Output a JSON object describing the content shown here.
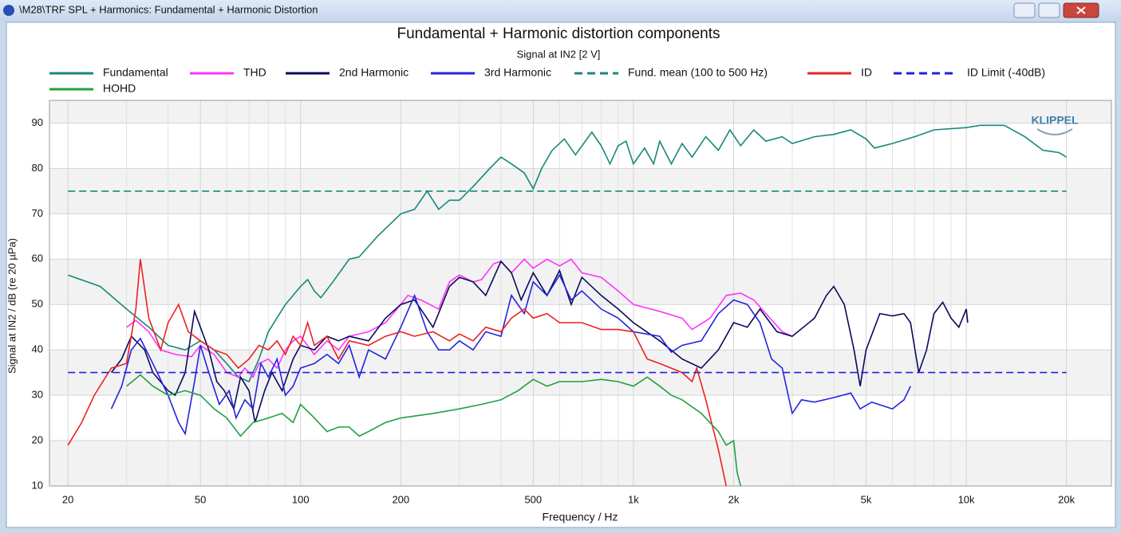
{
  "window_title": "\\M28\\TRF SPL + Harmonics: Fundamental + Harmonic Distortion",
  "logo": "KLIPPEL",
  "chart_data": {
    "type": "line",
    "title": "Fundamental + Harmonic distortion components",
    "subtitle": "Signal at IN2 [2 V]",
    "xlabel": "Frequency / Hz",
    "ylabel": "Signal at IN2 / dB (re 20 µPa)",
    "xscale": "log",
    "xlim": [
      17.6,
      27300
    ],
    "ylim": [
      10,
      95
    ],
    "xticks": [
      20,
      50,
      100,
      200,
      500,
      {
        "value": 1000,
        "label": "1k"
      },
      {
        "value": 2000,
        "label": "2k"
      },
      {
        "value": 5000,
        "label": "5k"
      },
      {
        "value": 10000,
        "label": "10k"
      },
      {
        "value": 20000,
        "label": "20k"
      }
    ],
    "xminor": [
      30,
      40,
      60,
      70,
      80,
      90,
      300,
      400,
      600,
      700,
      800,
      900,
      3000,
      4000,
      6000,
      7000,
      8000,
      9000
    ],
    "yticks": [
      10,
      20,
      30,
      40,
      50,
      60,
      70,
      80,
      90
    ],
    "grid": true,
    "series": [
      {
        "name": "Fundamental",
        "color": "#17877a",
        "dashed": false,
        "x": [
          20,
          25,
          30,
          35,
          40,
          45,
          50,
          55,
          60,
          65,
          70,
          75,
          80,
          90,
          100,
          105,
          110,
          115,
          125,
          140,
          150,
          170,
          200,
          220,
          240,
          260,
          280,
          300,
          330,
          370,
          400,
          430,
          470,
          500,
          530,
          570,
          620,
          670,
          750,
          800,
          850,
          900,
          950,
          1000,
          1080,
          1150,
          1200,
          1300,
          1400,
          1500,
          1650,
          1800,
          1950,
          2100,
          2300,
          2500,
          2800,
          3000,
          3500,
          4000,
          4500,
          5000,
          5300,
          6000,
          7000,
          8000,
          10000,
          11000,
          13000,
          15000,
          17000,
          19000,
          20000
        ],
        "values": [
          56.5,
          54,
          49,
          45,
          41,
          40,
          42,
          40,
          37,
          34,
          33,
          38,
          44,
          50,
          54,
          55.5,
          53,
          51.5,
          55,
          60,
          60.5,
          65,
          70,
          71,
          75,
          71,
          73,
          73,
          76,
          80,
          82.5,
          81,
          79,
          75.5,
          80,
          84,
          86.5,
          83,
          88,
          85,
          81,
          85,
          86,
          81,
          84.5,
          81,
          86,
          81,
          85.5,
          82.5,
          87,
          84,
          88.5,
          85,
          88.5,
          86,
          87,
          85.5,
          87,
          87.5,
          88.5,
          86.5,
          84.5,
          85.5,
          87,
          88.5,
          89,
          89.5,
          89.5,
          87,
          84,
          83.5,
          82.5
        ]
      },
      {
        "name": "THD",
        "color": "#ff33ff",
        "dashed": false,
        "x": [
          30,
          32,
          35,
          38,
          42,
          47,
          50,
          55,
          60,
          65,
          68,
          72,
          75,
          80,
          85,
          90,
          95,
          100,
          110,
          120,
          130,
          140,
          160,
          180,
          200,
          210,
          230,
          260,
          280,
          300,
          330,
          350,
          380,
          400,
          430,
          470,
          500,
          550,
          600,
          650,
          700,
          800,
          900,
          1000,
          1200,
          1400,
          1500,
          1700,
          1900,
          2100,
          2300,
          2500,
          2800,
          3000
        ],
        "values": [
          45,
          46.5,
          44,
          40,
          39,
          38.5,
          41,
          39,
          35,
          34,
          36,
          34,
          37,
          38,
          36,
          40,
          42,
          43,
          39,
          42,
          40,
          43,
          44,
          46,
          50,
          52,
          51,
          49,
          55,
          56.5,
          55,
          55.5,
          59,
          59.5,
          57,
          60,
          58,
          60,
          58.5,
          60,
          57,
          56,
          53,
          50,
          48.5,
          47,
          44.5,
          47,
          52,
          52.5,
          51,
          48,
          44,
          43
        ]
      },
      {
        "name": "2nd Harmonic",
        "color": "#0a0a5c",
        "dashed": false,
        "x": [
          27,
          29,
          31,
          34,
          36,
          40,
          42,
          45,
          48,
          50,
          53,
          56,
          59,
          63,
          66,
          70,
          73,
          78,
          82,
          88,
          95,
          100,
          110,
          120,
          130,
          140,
          160,
          180,
          200,
          220,
          250,
          280,
          300,
          330,
          360,
          400,
          430,
          460,
          500,
          550,
          600,
          650,
          700,
          800,
          900,
          1000,
          1200,
          1400,
          1600,
          1800,
          2000,
          2200,
          2400,
          2700,
          3000,
          3500,
          3800,
          4000,
          4300,
          4600,
          4800,
          5000,
          5500,
          6000,
          6500,
          6800,
          7200,
          7600,
          8000,
          8500,
          9000,
          9500,
          10000,
          10100
        ],
        "values": [
          35,
          38,
          43,
          40,
          35,
          31,
          30,
          35,
          48.5,
          45,
          40,
          33,
          31,
          27,
          34,
          31,
          24,
          31,
          35,
          31,
          38,
          41,
          40,
          43,
          42,
          43,
          42,
          47,
          50,
          51,
          45,
          54,
          56,
          55,
          52,
          59.5,
          57,
          51,
          57,
          52,
          57.5,
          50,
          56,
          52,
          49,
          46,
          42,
          38,
          36,
          40,
          46,
          45,
          49,
          44,
          43,
          47,
          52,
          54,
          50,
          40,
          32,
          40,
          48,
          47.5,
          48,
          46,
          35,
          40,
          48,
          50.5,
          47,
          45,
          49,
          46
        ]
      },
      {
        "name": "3rd Harmonic",
        "color": "#2424dd",
        "dashed": false,
        "x": [
          27,
          29,
          31,
          33,
          36,
          40,
          43,
          45,
          48,
          50,
          53,
          57,
          61,
          64,
          68,
          72,
          76,
          80,
          85,
          90,
          95,
          100,
          110,
          120,
          130,
          140,
          150,
          160,
          180,
          200,
          220,
          240,
          260,
          280,
          300,
          330,
          360,
          400,
          430,
          470,
          500,
          550,
          600,
          650,
          700,
          800,
          900,
          1000,
          1200,
          1300,
          1400,
          1600,
          1800,
          2000,
          2200,
          2400,
          2600,
          2800,
          3000,
          3200,
          3500,
          4000,
          4500,
          4800,
          5200,
          6000,
          6500,
          6800
        ],
        "values": [
          27,
          32,
          40,
          42.5,
          37,
          30,
          24,
          21.5,
          33,
          41,
          35,
          28,
          31,
          25,
          29,
          27,
          37,
          34,
          38,
          30,
          32,
          36,
          37,
          39,
          37,
          41,
          34,
          40,
          38,
          45,
          52,
          44,
          40,
          40,
          42,
          40,
          44,
          43,
          52,
          48,
          55,
          52,
          56.5,
          51,
          53,
          49,
          47,
          44,
          43,
          39.5,
          41,
          42,
          48,
          51,
          50,
          46,
          38,
          36,
          26,
          29,
          28.5,
          29.5,
          30.5,
          27,
          28.5,
          27,
          29,
          32
        ]
      },
      {
        "name": "Fund. mean (100 to 500 Hz)",
        "color": "#17877a",
        "dashed": true,
        "x": [
          20,
          20000
        ],
        "values": [
          75,
          75
        ]
      },
      {
        "name": "ID",
        "color": "#ee2020",
        "dashed": false,
        "x": [
          20,
          22,
          24,
          27,
          30,
          32,
          33,
          35,
          38,
          40,
          43,
          46,
          50,
          55,
          60,
          65,
          70,
          75,
          80,
          85,
          90,
          95,
          100,
          105,
          110,
          120,
          130,
          140,
          160,
          180,
          200,
          220,
          250,
          280,
          300,
          330,
          360,
          400,
          430,
          470,
          500,
          550,
          600,
          700,
          800,
          900,
          1000,
          1100,
          1200,
          1400,
          1500,
          1550,
          1650,
          1800,
          1900
        ],
        "values": [
          19,
          24,
          30,
          36,
          37,
          49,
          60,
          47,
          40,
          46,
          50,
          44,
          42,
          40,
          39,
          36,
          38,
          41,
          40,
          42,
          39,
          43,
          41,
          46,
          41,
          43,
          38,
          42,
          41,
          43,
          44,
          43,
          44,
          42,
          43.5,
          42,
          45,
          44,
          47,
          49,
          47,
          48,
          46,
          46,
          44.5,
          44.5,
          44,
          38,
          37,
          35,
          33,
          36,
          29,
          18,
          10
        ]
      },
      {
        "name": "ID Limit (-40dB)",
        "color": "#1f1fe0",
        "dashed": true,
        "x": [
          20,
          20000
        ],
        "values": [
          35,
          35
        ]
      },
      {
        "name": "HOHD",
        "color": "#22a040",
        "dashed": false,
        "x": [
          30,
          33,
          36,
          40,
          45,
          50,
          55,
          60,
          66,
          72,
          80,
          88,
          95,
          100,
          110,
          120,
          130,
          140,
          150,
          160,
          180,
          200,
          250,
          300,
          350,
          400,
          450,
          500,
          550,
          600,
          700,
          800,
          900,
          1000,
          1100,
          1200,
          1300,
          1400,
          1600,
          1800,
          1900,
          2000,
          2050,
          2100
        ],
        "values": [
          32,
          34.5,
          32,
          30,
          31,
          30,
          27,
          25,
          21,
          24,
          25,
          26,
          24,
          28,
          25,
          22,
          23,
          23,
          21,
          22,
          24,
          25,
          26,
          27,
          28,
          29,
          31,
          33.5,
          32,
          33,
          33,
          33.5,
          33,
          32,
          34,
          32,
          30,
          29,
          26,
          22,
          19,
          20,
          13,
          10
        ]
      }
    ]
  }
}
